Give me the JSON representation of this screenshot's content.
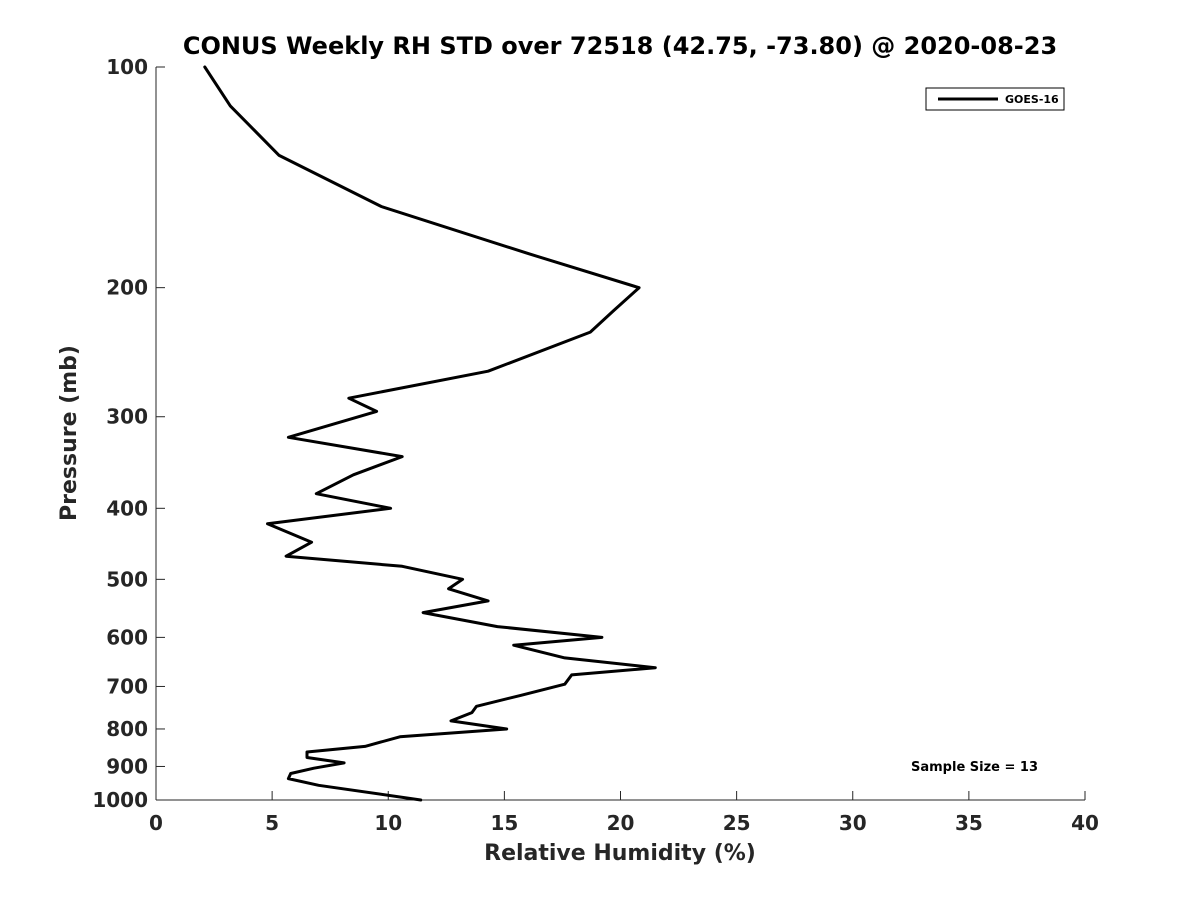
{
  "chart_data": {
    "type": "line",
    "title": "CONUS Weekly RH STD over 72518 (42.75, -73.80) @ 2020-08-23",
    "xlabel": "Relative Humidity (%)",
    "ylabel": "Pressure (mb)",
    "xlim": [
      0,
      40
    ],
    "ylim": [
      100,
      1000
    ],
    "yscale": "log",
    "y_reversed": true,
    "xticks": [
      0,
      5,
      10,
      15,
      20,
      25,
      30,
      35,
      40
    ],
    "xtick_labels": [
      "0",
      "5",
      "10",
      "15",
      "20",
      "25",
      "30",
      "35",
      "40"
    ],
    "yticks": [
      100,
      200,
      300,
      400,
      500,
      600,
      700,
      800,
      900,
      1000
    ],
    "ytick_labels": [
      "100",
      "200",
      "300",
      "400",
      "500",
      "600",
      "700",
      "800",
      "900",
      "1000"
    ],
    "grid": false,
    "legend": {
      "placement": "top-right",
      "entries": [
        "GOES-16"
      ]
    },
    "annotation": "Sample Size = 13",
    "series": [
      {
        "name": "GOES-16",
        "color": "#000000",
        "x": [
          2.1,
          3.2,
          5.3,
          9.7,
          16.1,
          20.8,
          19.7,
          18.7,
          14.3,
          8.3,
          9.5,
          5.7,
          10.6,
          8.5,
          6.9,
          10.1,
          4.8,
          6.7,
          5.6,
          10.6,
          13.2,
          12.6,
          14.3,
          11.5,
          14.7,
          19.2,
          15.4,
          17.6,
          21.5,
          17.9,
          17.6,
          15.7,
          13.8,
          13.6,
          12.7,
          15.1,
          10.5,
          9.0,
          6.5,
          6.5,
          8.1,
          6.8,
          5.8,
          5.7,
          7.0,
          11.4
        ],
        "y": [
          100,
          113,
          132,
          155,
          180,
          200,
          215,
          230,
          260,
          283,
          295,
          320,
          340,
          360,
          382,
          400,
          420,
          445,
          465,
          480,
          500,
          515,
          535,
          555,
          580,
          600,
          615,
          640,
          660,
          675,
          695,
          720,
          745,
          760,
          780,
          800,
          820,
          845,
          860,
          875,
          890,
          905,
          920,
          935,
          955,
          1000
        ]
      }
    ]
  }
}
